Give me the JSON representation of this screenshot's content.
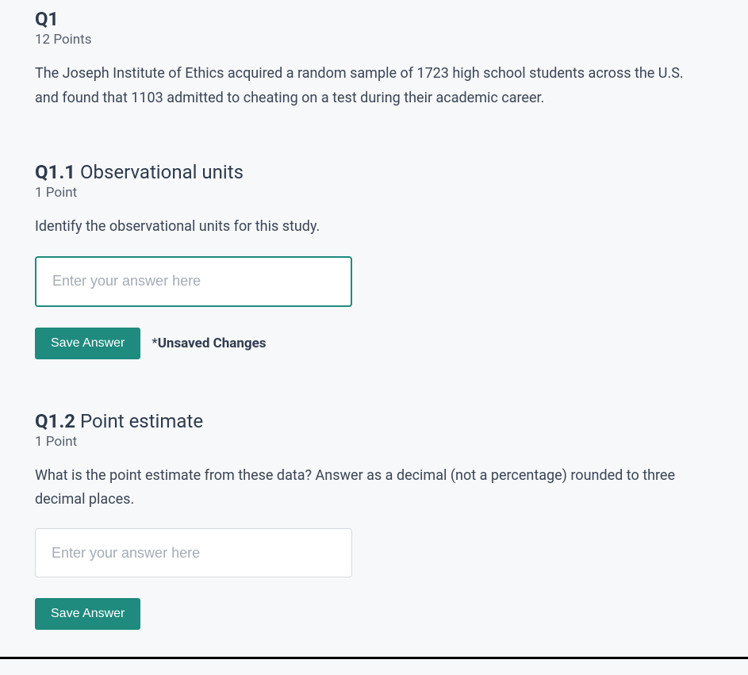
{
  "colors": {
    "background": "#f7f8f9",
    "text_primary": "#2e3b4e",
    "text_secondary": "#556070",
    "text_body": "#3a4556",
    "placeholder": "#a4acb5",
    "accent": "#1f8a7e",
    "input_border": "#d6d9dc",
    "input_bg": "#ffffff",
    "bottom_rule": "#000000"
  },
  "question": {
    "number": "Q1",
    "points": "12 Points",
    "text": "The Joseph Institute of Ethics acquired a random sample of 1723 high school students across the U.S. and found that 1103 admitted to cheating on a test during their academic career."
  },
  "subquestions": [
    {
      "number": "Q1.1",
      "title": "Observational units",
      "points": "1 Point",
      "prompt": "Identify the observational units for this study.",
      "input_placeholder": "Enter your answer here",
      "input_value": "",
      "focused": true,
      "save_label": "Save Answer",
      "show_unsaved": true,
      "unsaved_prefix": "*",
      "unsaved_label": "Unsaved Changes"
    },
    {
      "number": "Q1.2",
      "title": "Point estimate",
      "points": "1 Point",
      "prompt": "What is the point estimate from these data?  Answer as a decimal (not a percentage) rounded to three decimal places.",
      "input_placeholder": "Enter your answer here",
      "input_value": "",
      "focused": false,
      "save_label": "Save Answer",
      "show_unsaved": false,
      "unsaved_prefix": "",
      "unsaved_label": ""
    }
  ]
}
